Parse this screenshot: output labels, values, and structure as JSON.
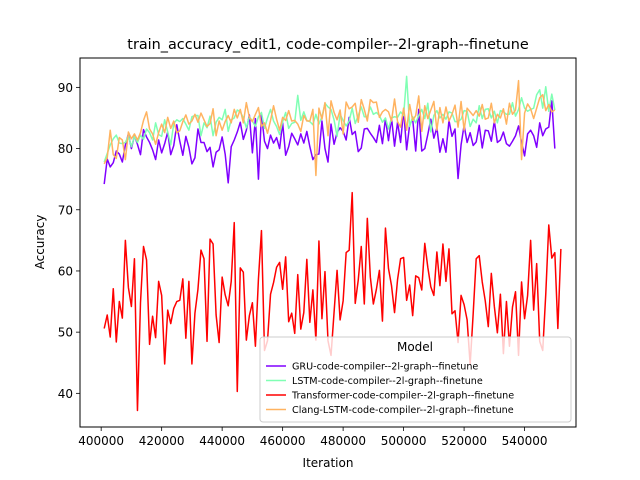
{
  "chart_data": {
    "type": "line",
    "title": "train_accuracy_edit1, code-compiler--2l-graph--finetune",
    "xlabel": "Iteration",
    "ylabel": "Accuracy",
    "xlim": [
      393000,
      557000
    ],
    "ylim": [
      34.5,
      94.8
    ],
    "xticks": [
      400000,
      420000,
      440000,
      460000,
      480000,
      500000,
      520000,
      540000
    ],
    "yticks": [
      40,
      50,
      60,
      70,
      80,
      90
    ],
    "grid": false,
    "legend": {
      "title": "Model",
      "placement": "lower-right",
      "entries": [
        "GRU-code-compiler--2l-graph--finetune",
        "LSTM-code-compiler--2l-graph--finetune",
        "Transformer-code-compiler--2l-graph--finetune",
        "Clang-LSTM-code-compiler--2l-graph--finetune"
      ]
    },
    "x_start": 401000,
    "x_step": 1000,
    "series": [
      {
        "name": "GRU-code-compiler--2l-graph--finetune",
        "color": "#8000ff",
        "values": [
          74.2,
          78.3,
          77.0,
          77.7,
          79.6,
          79.1,
          77.8,
          80.6,
          82.4,
          80.0,
          82.1,
          80.7,
          79.0,
          83.1,
          81.9,
          81.0,
          79.8,
          78.2,
          81.4,
          79.3,
          80.8,
          82.7,
          79.0,
          80.5,
          83.9,
          81.2,
          78.9,
          82.0,
          80.2,
          77.5,
          78.5,
          83.2,
          81.0,
          81.0,
          79.5,
          80.2,
          77.0,
          79.4,
          79.8,
          81.9,
          79.1,
          74.4,
          80.3,
          81.4,
          82.7,
          84.3,
          81.5,
          83.0,
          85.5,
          79.3,
          84.9,
          75.0,
          85.6,
          81.2,
          80.0,
          82.2,
          80.9,
          81.8,
          80.0,
          84.2,
          78.9,
          80.3,
          82.5,
          81.6,
          80.6,
          82.4,
          80.9,
          82.8,
          80.3,
          78.2,
          79.0,
          79.1,
          84.5,
          80.0,
          77.8,
          84.0,
          80.7,
          82.6,
          83.4,
          82.8,
          81.4,
          85.1,
          82.3,
          82.8,
          79.5,
          80.1,
          83.2,
          83.3,
          82.5,
          81.8,
          81.0,
          83.8,
          80.8,
          84.9,
          81.3,
          85.0,
          80.4,
          84.3,
          81.0,
          86.3,
          79.8,
          83.9,
          84.8,
          79.6,
          86.4,
          79.6,
          80.0,
          82.3,
          84.8,
          81.7,
          83.4,
          79.4,
          81.6,
          79.4,
          84.6,
          82.0,
          83.2,
          75.1,
          80.6,
          83.8,
          81.0,
          82.6,
          80.5,
          81.1,
          83.8,
          80.1,
          83.0,
          82.9,
          81.2,
          84.5,
          81.0,
          81.4,
          82.7,
          80.8,
          80.4,
          81.2,
          82.1,
          83.7,
          81.0,
          78.8,
          82.4,
          83.0,
          82.1,
          80.2,
          84.2,
          82.1,
          83.2,
          83.5,
          87.8,
          80.0
        ]
      },
      {
        "name": "LSTM-code-compiler--2l-graph--finetune",
        "color": "#80ffb4",
        "values": [
          77.8,
          79.2,
          80.6,
          81.6,
          82.2,
          80.9,
          80.8,
          81.0,
          82.1,
          80.3,
          82.0,
          81.0,
          82.2,
          81.5,
          83.2,
          82.6,
          81.4,
          84.2,
          82.3,
          82.0,
          84.7,
          82.7,
          80.6,
          84.1,
          84.7,
          84.4,
          84.9,
          84.0,
          83.0,
          85.2,
          85.4,
          85.4,
          82.1,
          84.2,
          83.4,
          85.3,
          82.1,
          84.3,
          85.1,
          84.7,
          86.4,
          82.8,
          84.7,
          85.0,
          86.3,
          86.0,
          85.0,
          83.4,
          85.2,
          84.5,
          83.6,
          85.2,
          85.9,
          83.3,
          85.0,
          86.4,
          84.5,
          83.6,
          82.3,
          84.4,
          85.9,
          83.3,
          84.1,
          84.3,
          88.7,
          84.6,
          86.0,
          84.6,
          84.4,
          83.9,
          85.6,
          84.0,
          85.2,
          87.4,
          86.8,
          86.4,
          84.7,
          82.0,
          85.6,
          84.6,
          83.7,
          84.5,
          86.6,
          84.1,
          85.4,
          86.8,
          85.2,
          85.2,
          86.8,
          85.6,
          85.9,
          85.4,
          84.3,
          85.0,
          83.2,
          85.0,
          85.2,
          85.1,
          86.0,
          85.4,
          91.8,
          83.6,
          85.2,
          84.2,
          85.4,
          86.4,
          84.9,
          87.4,
          82.7,
          85.4,
          86.2,
          85.0,
          85.6,
          84.8,
          86.0,
          85.8,
          84.4,
          84.4,
          84.8,
          86.2,
          86.1,
          83.6,
          84.8,
          84.2,
          87.0,
          84.9,
          86.4,
          86.5,
          85.0,
          86.1,
          84.2,
          86.2,
          86.0,
          85.6,
          85.6,
          87.5,
          85.3,
          86.4,
          88.3,
          86.6,
          86.1,
          86.4,
          86.6,
          88.8,
          89.6,
          86.6,
          90.1,
          86.1,
          88.9,
          86.3
        ]
      },
      {
        "name": "Transformer-code-compiler--2l-graph--finetune",
        "color": "#ff0000",
        "values": [
          50.6,
          52.8,
          49.2,
          57.1,
          48.4,
          55.0,
          52.3,
          65.0,
          57.3,
          54.2,
          62.0,
          37.2,
          54.8,
          64.0,
          61.8,
          48.0,
          52.6,
          49.1,
          58.3,
          56.0,
          44.8,
          53.6,
          51.4,
          53.9,
          55.0,
          55.2,
          58.7,
          49.0,
          58.3,
          44.8,
          53.1,
          57.0,
          63.4,
          62.0,
          48.5,
          65.2,
          64.4,
          52.8,
          48.3,
          59.0,
          56.1,
          54.3,
          58.3,
          67.9,
          40.3,
          60.5,
          59.8,
          48.7,
          52.7,
          54.8,
          47.7,
          58.7,
          66.6,
          47.0,
          48.6,
          56.2,
          58.1,
          60.6,
          61.4,
          57.0,
          62.3,
          51.7,
          53.1,
          49.8,
          59.4,
          50.5,
          53.2,
          61.9,
          51.6,
          56.9,
          48.7,
          64.9,
          52.2,
          59.9,
          48.6,
          46.2,
          53.2,
          60.1,
          52.0,
          55.1,
          63.0,
          63.4,
          72.8,
          54.7,
          58.5,
          64.0,
          54.6,
          68.6,
          59.0,
          54.6,
          57.0,
          60.1,
          51.8,
          67.0,
          60.4,
          57.6,
          53.2,
          58.6,
          62.0,
          62.2,
          55.2,
          57.7,
          52.7,
          59.2,
          58.9,
          56.9,
          64.5,
          60.6,
          57.4,
          56.0,
          63.1,
          57.6,
          64.4,
          58.3,
          63.6,
          53.0,
          53.5,
          48.3,
          56.0,
          54.5,
          52.0,
          44.7,
          53.0,
          62.0,
          62.5,
          58.2,
          55.1,
          50.9,
          59.6,
          54.2,
          49.9,
          56.2,
          46.5,
          55.0,
          47.7,
          54.1,
          56.6,
          46.2,
          58.2,
          52.2,
          56.0,
          65.0,
          53.6,
          61.2,
          48.5,
          47.0,
          56.2,
          67.5,
          62.1,
          63.0,
          50.6,
          63.6
        ]
      },
      {
        "name": "Clang-LSTM-code-compiler--2l-graph--finetune",
        "color": "#ffb360",
        "values": [
          77.5,
          78.5,
          83.0,
          79.0,
          78.4,
          81.8,
          81.4,
          78.2,
          82.7,
          81.6,
          82.4,
          81.4,
          82.6,
          84.6,
          86.0,
          83.2,
          82.4,
          80.7,
          82.6,
          84.0,
          82.6,
          85.1,
          83.3,
          84.5,
          82.6,
          82.9,
          84.4,
          85.5,
          84.0,
          84.5,
          85.6,
          84.3,
          85.8,
          84.7,
          83.6,
          84.1,
          86.5,
          82.1,
          84.5,
          83.0,
          84.4,
          85.4,
          84.2,
          86.4,
          85.0,
          86.4,
          84.2,
          87.5,
          85.1,
          84.4,
          85.6,
          86.7,
          83.6,
          84.2,
          82.5,
          84.6,
          87.0,
          84.8,
          83.0,
          85.1,
          84.6,
          86.2,
          84.5,
          84.6,
          84.0,
          82.8,
          85.4,
          84.5,
          84.5,
          86.4,
          75.6,
          86.6,
          84.8,
          87.5,
          82.1,
          87.8,
          85.9,
          84.7,
          86.3,
          82.4,
          87.6,
          86.5,
          86.8,
          87.4,
          84.3,
          88.0,
          86.4,
          84.5,
          88.0,
          87.5,
          87.6,
          85.1,
          86.0,
          86.4,
          86.0,
          84.5,
          88.1,
          84.4,
          83.5,
          86.6,
          83.0,
          87.2,
          84.6,
          85.4,
          88.6,
          82.8,
          87.0,
          84.9,
          86.3,
          87.7,
          83.0,
          86.7,
          84.2,
          86.8,
          84.5,
          85.6,
          87.1,
          83.5,
          87.7,
          83.0,
          86.6,
          86.0,
          85.4,
          86.2,
          85.3,
          87.2,
          84.8,
          85.0,
          87.4,
          84.2,
          85.6,
          85.0,
          86.5,
          84.0,
          87.4,
          85.6,
          86.3,
          91.1,
          78.2,
          85.8,
          87.3,
          86.5,
          84.9,
          86.6,
          88.3,
          88.8,
          86.2,
          87.2,
          86.0,
          86.3
        ]
      }
    ]
  }
}
